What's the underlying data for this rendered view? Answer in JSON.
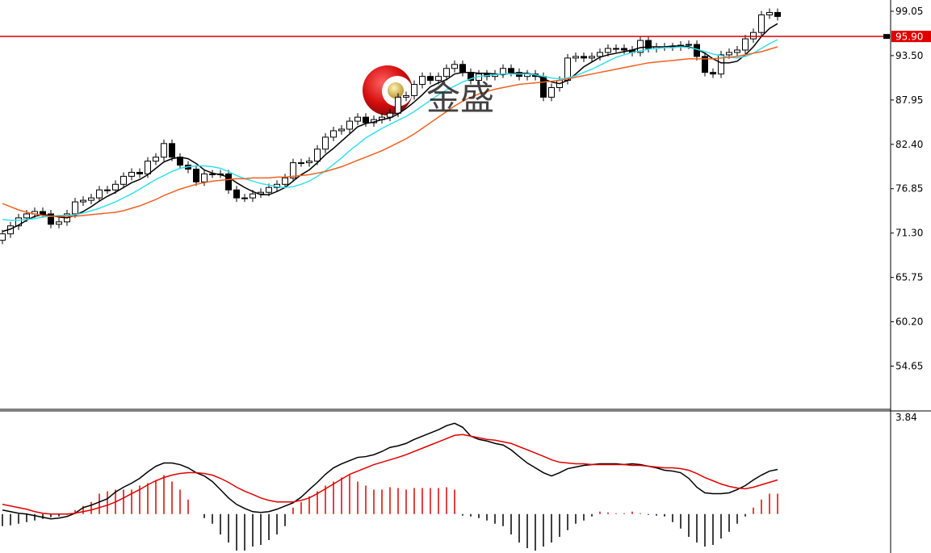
{
  "chart_data": [
    {
      "type": "candlestick",
      "watermark": "金盛",
      "open": [
        70.4,
        71.2,
        72.2,
        73.2,
        73.7,
        74.0,
        73.7,
        72.4,
        72.7,
        73.7,
        75.2,
        75.4,
        75.7,
        76.7,
        76.7,
        77.4,
        78.4,
        78.9,
        78.7,
        80.3,
        80.8,
        82.5,
        80.8,
        79.8,
        79.3,
        77.7,
        78.7,
        78.7,
        78.7,
        76.7,
        75.7,
        75.7,
        76.2,
        76.4,
        77.0,
        77.4,
        78.2,
        80.1,
        80.1,
        80.3,
        81.8,
        83.3,
        84.1,
        84.3,
        85.3,
        85.8,
        85.1,
        85.5,
        85.8,
        86.3,
        88.3,
        88.5,
        89.9,
        90.9,
        90.4,
        90.9,
        91.9,
        92.4,
        91.4,
        90.4,
        91.2,
        90.9,
        91.2,
        91.9,
        91.4,
        90.9,
        91.2,
        90.9,
        88.3,
        89.5,
        90.4,
        93.2,
        93.4,
        93.2,
        93.4,
        93.9,
        94.4,
        94.4,
        94.2,
        93.9,
        95.4,
        94.4,
        94.6,
        94.6,
        94.6,
        94.8,
        94.9,
        93.4,
        91.4,
        91.2,
        93.6,
        93.9,
        94.2,
        95.6,
        96.4,
        98.6,
        98.9
      ],
      "high": [
        71.7,
        72.7,
        73.7,
        74.2,
        74.5,
        74.5,
        74.2,
        73.2,
        74.2,
        75.7,
        75.9,
        76.2,
        77.2,
        77.2,
        77.9,
        78.9,
        79.4,
        79.4,
        80.8,
        81.3,
        83.0,
        83.0,
        81.3,
        80.3,
        79.8,
        79.2,
        79.2,
        79.2,
        79.2,
        77.2,
        76.2,
        76.7,
        76.9,
        77.5,
        77.9,
        78.7,
        80.6,
        80.6,
        80.8,
        82.3,
        83.8,
        84.6,
        84.8,
        85.8,
        86.3,
        86.3,
        86.0,
        86.3,
        86.8,
        88.8,
        89.0,
        90.4,
        91.4,
        91.4,
        91.4,
        92.4,
        92.9,
        92.9,
        91.9,
        91.7,
        91.7,
        91.7,
        92.4,
        92.4,
        91.9,
        91.7,
        91.7,
        91.4,
        90.0,
        90.9,
        93.7,
        93.9,
        93.9,
        93.9,
        94.4,
        94.9,
        94.9,
        94.9,
        94.7,
        95.9,
        95.9,
        95.1,
        95.1,
        95.1,
        95.3,
        95.4,
        95.4,
        93.9,
        91.9,
        94.1,
        94.4,
        94.7,
        96.1,
        96.9,
        99.1,
        99.4,
        99.4
      ],
      "low": [
        69.9,
        70.7,
        71.7,
        72.7,
        73.2,
        73.2,
        71.9,
        71.9,
        72.2,
        73.2,
        74.7,
        74.9,
        75.2,
        76.2,
        76.2,
        76.9,
        77.9,
        78.2,
        78.2,
        79.8,
        80.3,
        80.3,
        79.3,
        78.8,
        77.2,
        77.2,
        78.2,
        78.2,
        76.2,
        75.2,
        75.2,
        75.2,
        75.7,
        75.9,
        76.5,
        76.9,
        77.7,
        79.6,
        79.6,
        79.8,
        81.3,
        82.8,
        83.6,
        83.8,
        84.8,
        84.6,
        84.6,
        85.0,
        85.3,
        85.8,
        87.8,
        88.0,
        89.4,
        89.9,
        89.9,
        90.4,
        91.4,
        90.9,
        89.9,
        89.9,
        90.4,
        90.4,
        90.7,
        90.9,
        90.4,
        90.4,
        90.4,
        87.8,
        87.8,
        89.0,
        89.9,
        92.7,
        92.7,
        92.7,
        92.9,
        93.4,
        93.9,
        93.7,
        93.4,
        93.4,
        93.9,
        93.9,
        94.1,
        94.1,
        94.1,
        94.3,
        92.9,
        90.9,
        90.7,
        90.7,
        93.1,
        93.4,
        93.7,
        95.1,
        95.9,
        98.1,
        97.9
      ],
      "close": [
        71.2,
        72.2,
        73.2,
        73.7,
        74.0,
        73.7,
        72.4,
        72.7,
        73.7,
        75.2,
        75.4,
        75.7,
        76.7,
        76.7,
        77.4,
        78.4,
        78.9,
        78.7,
        80.3,
        80.8,
        82.5,
        80.8,
        79.8,
        79.3,
        77.7,
        78.7,
        78.7,
        78.7,
        76.7,
        75.7,
        75.7,
        76.2,
        76.4,
        77.0,
        77.4,
        78.2,
        80.1,
        80.1,
        80.3,
        81.8,
        83.3,
        84.1,
        84.3,
        85.3,
        85.8,
        85.1,
        85.5,
        85.8,
        86.3,
        88.3,
        88.5,
        89.9,
        90.9,
        90.4,
        90.9,
        91.9,
        92.4,
        91.4,
        90.4,
        91.2,
        90.9,
        91.2,
        91.9,
        91.4,
        90.9,
        91.2,
        90.9,
        88.3,
        89.5,
        90.4,
        93.2,
        93.4,
        93.2,
        93.4,
        93.9,
        94.4,
        94.4,
        94.2,
        93.9,
        95.4,
        94.4,
        94.6,
        94.6,
        94.6,
        94.8,
        94.9,
        93.4,
        91.4,
        91.2,
        93.6,
        93.9,
        94.2,
        95.6,
        96.4,
        98.6,
        98.9,
        98.4
      ],
      "up_color": "#ffffff",
      "down_color": "#000000",
      "series": [
        {
          "color": "#000000",
          "values": [
            71.5,
            71.8,
            72.3,
            72.9,
            73.4,
            73.6,
            73.5,
            73.3,
            73.2,
            73.5,
            74.0,
            74.6,
            75.3,
            75.9,
            76.4,
            77.0,
            77.6,
            78.0,
            78.6,
            79.4,
            80.2,
            80.6,
            80.8,
            80.6,
            80.0,
            79.2,
            78.8,
            78.6,
            78.3,
            77.6,
            77.0,
            76.5,
            76.1,
            76.1,
            76.5,
            77.0,
            77.8,
            78.6,
            79.2,
            80.1,
            81.1,
            81.9,
            82.8,
            83.7,
            84.6,
            85.0,
            85.2,
            85.5,
            85.7,
            86.2,
            86.9,
            87.7,
            88.6,
            89.6,
            90.1,
            90.5,
            91.2,
            91.4,
            91.4,
            91.3,
            91.3,
            91.2,
            91.1,
            91.3,
            91.3,
            91.3,
            91.1,
            90.6,
            90.2,
            90.0,
            90.4,
            91.2,
            92.1,
            92.7,
            93.3,
            93.6,
            93.8,
            94.0,
            94.2,
            94.5,
            94.6,
            94.6,
            94.6,
            94.7,
            94.7,
            94.6,
            94.3,
            93.8,
            93.1,
            92.6,
            92.6,
            92.8,
            93.6,
            94.6,
            95.9,
            96.9,
            97.5
          ]
        },
        {
          "color": "#33e0f0",
          "values": [
            73.0,
            72.9,
            72.9,
            73.0,
            73.1,
            73.3,
            73.4,
            73.5,
            73.5,
            73.6,
            73.8,
            74.1,
            74.4,
            74.8,
            75.2,
            75.7,
            76.2,
            76.8,
            77.4,
            78.0,
            78.5,
            79.0,
            79.4,
            79.6,
            79.7,
            79.7,
            79.6,
            79.4,
            79.0,
            78.5,
            78.1,
            77.8,
            77.5,
            77.3,
            77.1,
            77.0,
            77.1,
            77.4,
            77.8,
            78.4,
            79.1,
            79.9,
            80.7,
            81.6,
            82.4,
            83.2,
            83.8,
            84.4,
            84.9,
            85.4,
            85.9,
            86.5,
            87.2,
            87.9,
            88.6,
            89.2,
            89.7,
            90.2,
            90.6,
            90.9,
            91.0,
            91.1,
            91.2,
            91.2,
            91.2,
            91.2,
            91.1,
            90.9,
            90.7,
            90.6,
            90.7,
            91.0,
            91.4,
            91.8,
            92.3,
            92.8,
            93.3,
            93.6,
            93.9,
            94.1,
            94.3,
            94.4,
            94.5,
            94.5,
            94.6,
            94.5,
            94.3,
            94.0,
            93.7,
            93.5,
            93.3,
            93.2,
            93.4,
            93.8,
            94.4,
            95.0,
            95.5
          ]
        },
        {
          "color": "#f06020",
          "values": [
            75.0,
            74.6,
            74.2,
            73.9,
            73.7,
            73.5,
            73.4,
            73.4,
            73.4,
            73.4,
            73.5,
            73.6,
            73.7,
            73.8,
            73.9,
            74.1,
            74.4,
            74.7,
            75.1,
            75.5,
            76.0,
            76.4,
            76.8,
            77.1,
            77.4,
            77.6,
            77.8,
            77.9,
            78.0,
            78.1,
            78.1,
            78.2,
            78.2,
            78.2,
            78.3,
            78.3,
            78.4,
            78.5,
            78.6,
            78.8,
            79.0,
            79.3,
            79.6,
            80.0,
            80.4,
            80.8,
            81.2,
            81.6,
            82.1,
            82.6,
            83.1,
            83.7,
            84.4,
            85.1,
            85.8,
            86.5,
            87.2,
            87.8,
            88.3,
            88.7,
            89.0,
            89.3,
            89.5,
            89.7,
            89.9,
            90.0,
            90.1,
            90.2,
            90.3,
            90.4,
            90.6,
            90.8,
            91.0,
            91.2,
            91.4,
            91.6,
            91.8,
            92.0,
            92.2,
            92.4,
            92.6,
            92.7,
            92.8,
            92.9,
            93.0,
            93.1,
            93.1,
            93.1,
            93.1,
            93.2,
            93.3,
            93.4,
            93.6,
            93.8,
            94.0,
            94.3,
            94.6
          ]
        }
      ],
      "current_price": {
        "value": 95.9,
        "label": "95.90"
      },
      "current_color": "#e00000",
      "ylim": [
        49.25,
        100.46
      ],
      "yticks": [
        99.05,
        {
          "value": 93.5,
          "label": "93.50"
        },
        87.95,
        {
          "value": 82.4,
          "label": "82.40"
        },
        76.85,
        {
          "value": 71.3,
          "label": "71.30"
        },
        65.75,
        {
          "value": 60.2,
          "label": "60.20"
        },
        54.65
      ]
    },
    {
      "type": "macd",
      "series": [
        {
          "color": "#000000",
          "values": [
            0.15,
            0.09,
            0.03,
            0,
            -0.06,
            -0.12,
            -0.18,
            -0.15,
            -0.09,
            0.03,
            0.24,
            0.33,
            0.45,
            0.57,
            0.82,
            1.0,
            1.15,
            1.33,
            1.57,
            1.78,
            1.9,
            1.9,
            1.84,
            1.72,
            1.54,
            1.42,
            1.21,
            0.91,
            0.6,
            0.36,
            0.21,
            0.09,
            0.06,
            0.09,
            0.18,
            0.3,
            0.42,
            0.63,
            0.91,
            1.18,
            1.48,
            1.72,
            1.87,
            1.99,
            2.11,
            2.14,
            2.21,
            2.33,
            2.48,
            2.54,
            2.63,
            2.78,
            2.9,
            3.02,
            3.14,
            3.29,
            3.38,
            3.23,
            2.9,
            2.78,
            2.72,
            2.63,
            2.57,
            2.39,
            2.14,
            1.9,
            1.72,
            1.54,
            1.42,
            1.54,
            1.69,
            1.75,
            1.81,
            1.84,
            1.87,
            1.87,
            1.87,
            1.84,
            1.87,
            1.84,
            1.78,
            1.72,
            1.63,
            1.6,
            1.54,
            1.33,
            1.0,
            0.79,
            0.76,
            0.76,
            0.79,
            0.91,
            1.06,
            1.27,
            1.45,
            1.6,
            1.66
          ]
        },
        {
          "color": "#e00000",
          "values": [
            0.36,
            0.3,
            0.24,
            0.18,
            0.09,
            0.03,
            0,
            0,
            0,
            0.03,
            0.09,
            0.15,
            0.24,
            0.33,
            0.45,
            0.6,
            0.76,
            0.91,
            1.09,
            1.24,
            1.36,
            1.45,
            1.51,
            1.54,
            1.54,
            1.51,
            1.45,
            1.33,
            1.18,
            1.0,
            0.85,
            0.73,
            0.6,
            0.51,
            0.45,
            0.45,
            0.45,
            0.51,
            0.6,
            0.76,
            0.94,
            1.12,
            1.3,
            1.48,
            1.6,
            1.72,
            1.84,
            1.93,
            2.02,
            2.11,
            2.21,
            2.33,
            2.45,
            2.57,
            2.69,
            2.81,
            2.93,
            2.96,
            2.9,
            2.84,
            2.78,
            2.75,
            2.69,
            2.63,
            2.51,
            2.39,
            2.27,
            2.15,
            2.02,
            1.93,
            1.9,
            1.87,
            1.87,
            1.84,
            1.84,
            1.84,
            1.84,
            1.84,
            1.81,
            1.81,
            1.78,
            1.75,
            1.72,
            1.72,
            1.69,
            1.63,
            1.51,
            1.36,
            1.24,
            1.12,
            1.03,
            0.97,
            0.94,
            1.0,
            1.09,
            1.18,
            1.27
          ]
        }
      ],
      "histogram": {
        "positive_color": "#e00000",
        "negative_color": "#000000",
        "values": [
          -0.45,
          -0.42,
          -0.36,
          -0.3,
          -0.24,
          -0.18,
          -0.12,
          -0.09,
          -0.03,
          0.15,
          0.3,
          0.45,
          0.76,
          0.85,
          0.91,
          0.91,
          0.91,
          1.06,
          1.15,
          1.27,
          1.45,
          1.21,
          0.91,
          0.54,
          0,
          -0.15,
          -0.36,
          -0.76,
          -1.06,
          -1.36,
          -1.36,
          -1.21,
          -1.15,
          -0.97,
          -0.76,
          -0.45,
          0.24,
          0.45,
          0.66,
          0.85,
          1.06,
          1.21,
          1.36,
          1.45,
          1.21,
          1.06,
          0.91,
          0.91,
          1.0,
          0.97,
          0.91,
          0.97,
          0.97,
          0.97,
          0.97,
          1.0,
          0.91,
          -0.06,
          -0.09,
          -0.15,
          -0.24,
          -0.36,
          -0.45,
          -0.76,
          -1.06,
          -1.27,
          -1.36,
          -1.21,
          -1.06,
          -0.85,
          -0.6,
          -0.36,
          -0.24,
          -0.09,
          0.09,
          0.06,
          0.03,
          0.03,
          0.09,
          0.03,
          -0.03,
          -0.06,
          -0.09,
          -0.3,
          -0.54,
          -0.85,
          -1.06,
          -1.21,
          -1.15,
          -0.91,
          -0.66,
          -0.36,
          -0.09,
          0.24,
          0.54,
          0.76,
          0.76
        ]
      },
      "ylim": [
        -1.45,
        3.84
      ],
      "yticks": [
        3.84
      ]
    }
  ]
}
